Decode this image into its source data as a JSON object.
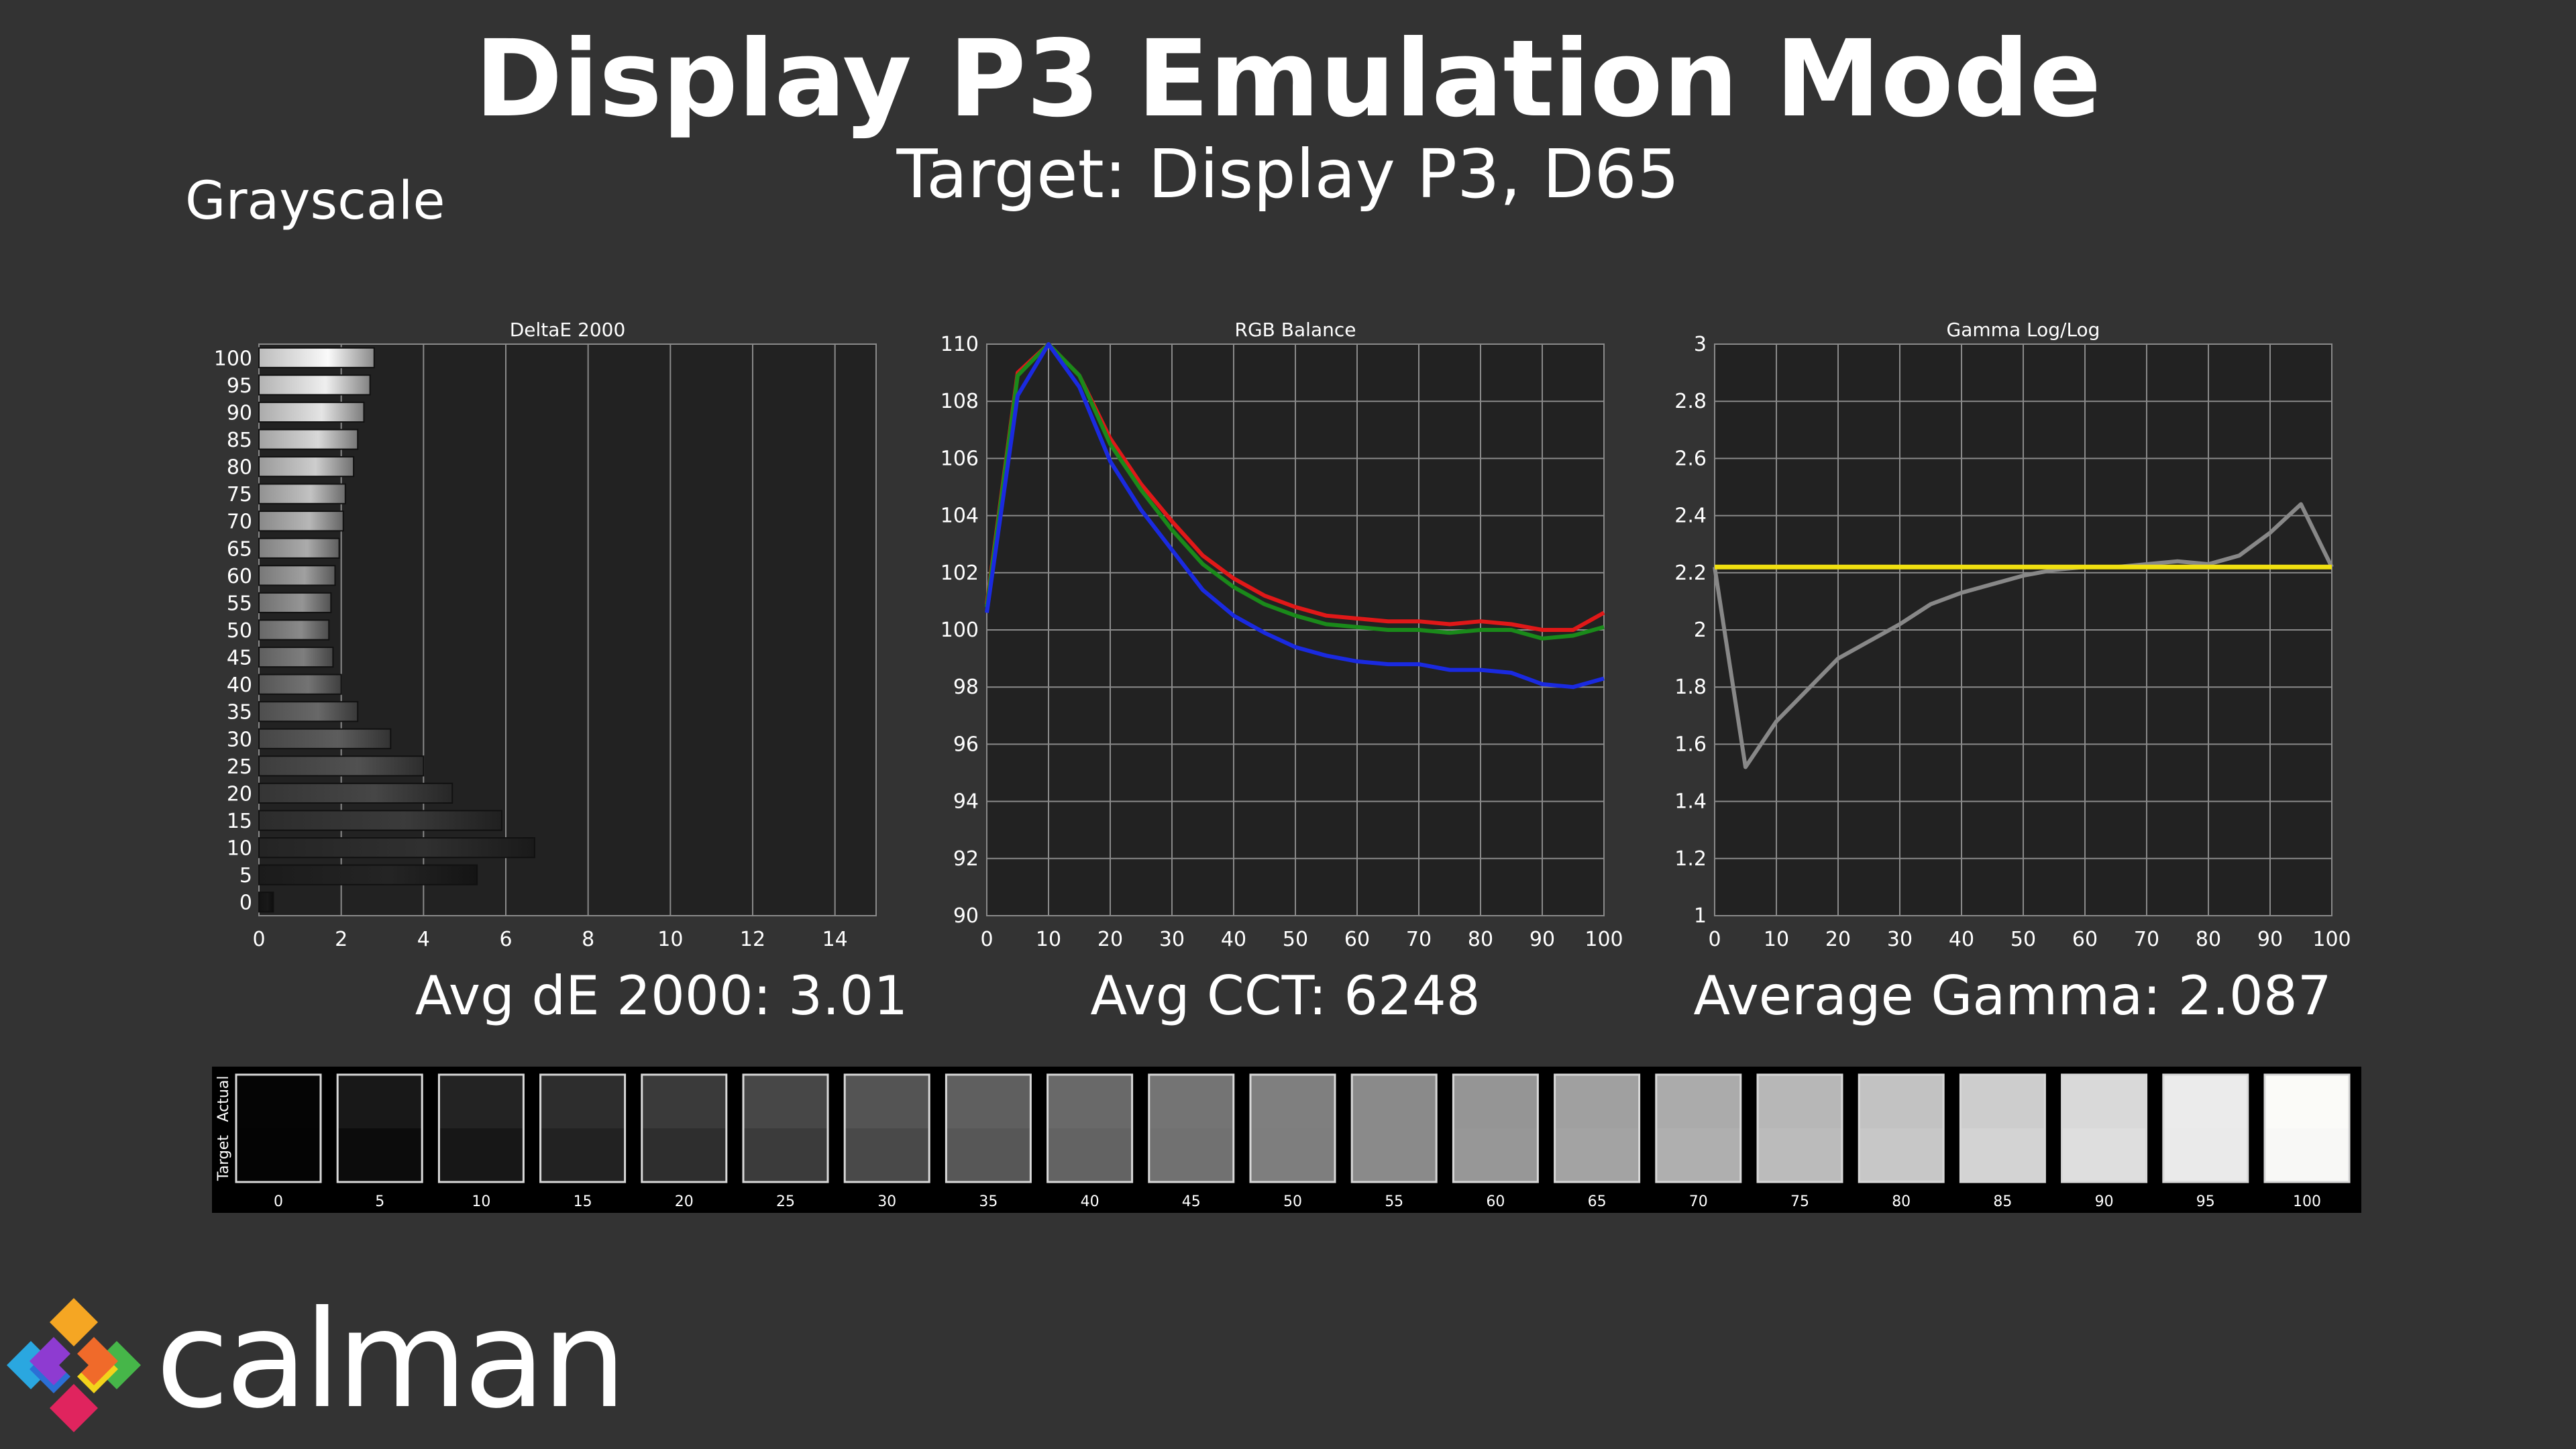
{
  "header": {
    "title": "Display P3 Emulation Mode",
    "subtitle": "Target: Display P3, D65",
    "section": "Grayscale"
  },
  "averages": {
    "de": "Avg dE 2000: 3.01",
    "cct": "Avg CCT: 6248",
    "gamma": "Average Gamma: 2.087"
  },
  "logo": {
    "text": "calman",
    "icon": "calman-diamond-logo"
  },
  "chart_data": [
    {
      "type": "bar",
      "orientation": "horizontal",
      "title": "DeltaE 2000",
      "categories": [
        "0",
        "5",
        "10",
        "15",
        "20",
        "25",
        "30",
        "35",
        "40",
        "45",
        "50",
        "55",
        "60",
        "65",
        "70",
        "75",
        "80",
        "85",
        "90",
        "95",
        "100"
      ],
      "values": [
        0.35,
        5.3,
        6.7,
        5.9,
        4.7,
        4.0,
        3.2,
        2.4,
        2.0,
        1.8,
        1.7,
        1.75,
        1.85,
        1.95,
        2.05,
        2.1,
        2.3,
        2.4,
        2.55,
        2.7,
        2.8
      ],
      "xlim": [
        0,
        15
      ],
      "xticks": [
        0,
        2,
        4,
        6,
        8,
        10,
        12,
        14
      ],
      "grid": true
    },
    {
      "type": "line",
      "title": "RGB Balance",
      "x": [
        0,
        5,
        10,
        15,
        20,
        25,
        30,
        35,
        40,
        45,
        50,
        55,
        60,
        65,
        70,
        75,
        80,
        85,
        90,
        95,
        100
      ],
      "series": [
        {
          "color": "#e01818",
          "values": [
            100.9,
            109.0,
            110.0,
            108.9,
            106.7,
            105.1,
            103.8,
            102.6,
            101.8,
            101.2,
            100.8,
            100.5,
            100.4,
            100.3,
            100.3,
            100.2,
            100.3,
            100.2,
            100.0,
            100.0,
            100.6
          ]
        },
        {
          "color": "#1a8a1a",
          "values": [
            100.8,
            108.9,
            110.0,
            108.9,
            106.5,
            104.9,
            103.5,
            102.3,
            101.5,
            100.9,
            100.5,
            100.2,
            100.1,
            100.0,
            100.0,
            99.9,
            100.0,
            100.0,
            99.7,
            99.8,
            100.1
          ]
        },
        {
          "color": "#1a2ae0",
          "values": [
            100.6,
            108.2,
            110.0,
            108.5,
            105.9,
            104.2,
            102.8,
            101.4,
            100.5,
            99.9,
            99.4,
            99.1,
            98.9,
            98.8,
            98.8,
            98.6,
            98.6,
            98.5,
            98.1,
            98.0,
            98.3
          ]
        }
      ],
      "xlim": [
        0,
        100
      ],
      "ylim": [
        90,
        110
      ],
      "xticks": [
        0,
        10,
        20,
        30,
        40,
        50,
        60,
        70,
        80,
        90,
        100
      ],
      "yticks": [
        90,
        92,
        94,
        96,
        98,
        100,
        102,
        104,
        106,
        108,
        110
      ],
      "grid": true
    },
    {
      "type": "line",
      "title": "Gamma Log/Log",
      "x": [
        0,
        5,
        10,
        15,
        20,
        25,
        30,
        35,
        40,
        45,
        50,
        55,
        60,
        65,
        70,
        75,
        80,
        85,
        90,
        95,
        100
      ],
      "series": [
        {
          "color": "#888888",
          "values": [
            2.22,
            1.52,
            1.68,
            1.79,
            1.9,
            1.96,
            2.02,
            2.09,
            2.13,
            2.16,
            2.19,
            2.21,
            2.22,
            2.22,
            2.23,
            2.24,
            2.23,
            2.26,
            2.34,
            2.44,
            2.22
          ]
        },
        {
          "color": "#f0e010",
          "values": [
            2.22,
            2.22,
            2.22,
            2.22,
            2.22,
            2.22,
            2.22,
            2.22,
            2.22,
            2.22,
            2.22,
            2.22,
            2.22,
            2.22,
            2.22,
            2.22,
            2.22,
            2.22,
            2.22,
            2.22,
            2.22
          ]
        }
      ],
      "xlim": [
        0,
        100
      ],
      "ylim": [
        1,
        3
      ],
      "xticks": [
        0,
        10,
        20,
        30,
        40,
        50,
        60,
        70,
        80,
        90,
        100
      ],
      "yticks": [
        "1",
        "1.2",
        "1.4",
        "1.6",
        "1.8",
        "2",
        "2.2",
        "2.4",
        "2.6",
        "2.8",
        "3"
      ],
      "grid": true
    }
  ],
  "swatches": {
    "side_labels": [
      "Actual",
      "Target"
    ],
    "labels": [
      "0",
      "5",
      "10",
      "15",
      "20",
      "25",
      "30",
      "35",
      "40",
      "45",
      "50",
      "55",
      "60",
      "65",
      "70",
      "75",
      "80",
      "85",
      "90",
      "95",
      "100"
    ],
    "actual": [
      "#050505",
      "#181818",
      "#232323",
      "#2d2d2d",
      "#3a3a3a",
      "#474747",
      "#545454",
      "#5f5f5f",
      "#696969",
      "#747474",
      "#7f7f7f",
      "#8a8a8a",
      "#959595",
      "#a0a0a0",
      "#ababab",
      "#b7b7b7",
      "#c2c2c2",
      "#cdcdcd",
      "#d9d9d9",
      "#ebebeb",
      "#fbfbf8"
    ],
    "target": [
      "#040404",
      "#0c0c0c",
      "#171717",
      "#222222",
      "#2e2e2e",
      "#3b3b3b",
      "#494949",
      "#575757",
      "#636363",
      "#717171",
      "#7e7e7e",
      "#8a8a8a",
      "#979797",
      "#a3a3a3",
      "#afafaf",
      "#bbbbbb",
      "#c7c7c7",
      "#d3d3d3",
      "#dedede",
      "#eaeaea",
      "#f8f8f6"
    ]
  }
}
